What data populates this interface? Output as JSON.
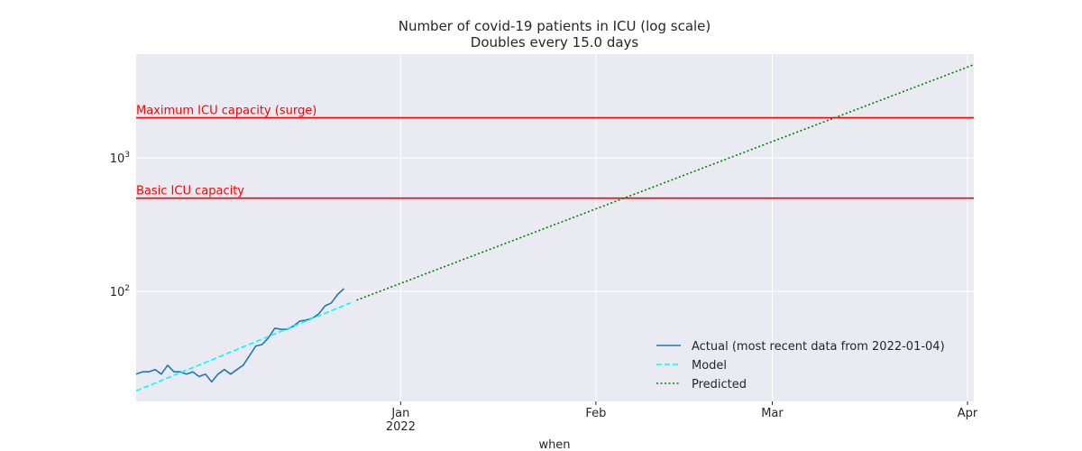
{
  "chart_data": {
    "type": "line",
    "title": "Number of covid-19 patients in ICU (log scale)",
    "subtitle": "Doubles every 15.0 days",
    "xlabel": "when",
    "ylabel": "",
    "yscale": "log",
    "ylim": [
      15,
      6000
    ],
    "xlim": [
      "2021-11-20",
      "2022-04-02"
    ],
    "grid": true,
    "x_ticks": [
      {
        "date": "2022-01-01",
        "label": "Jan",
        "sublabel": "2022"
      },
      {
        "date": "2022-02-01",
        "label": "Feb",
        "sublabel": ""
      },
      {
        "date": "2022-03-01",
        "label": "Mar",
        "sublabel": ""
      },
      {
        "date": "2022-04-01",
        "label": "Apr",
        "sublabel": ""
      }
    ],
    "y_ticks": [
      {
        "value": 100,
        "base": "10",
        "exp": "2"
      },
      {
        "value": 1000,
        "base": "10",
        "exp": "3"
      }
    ],
    "reference_lines": [
      {
        "label": "Maximum ICU capacity (surge)",
        "value": 2000,
        "color": "#ff0000"
      },
      {
        "label": "Basic ICU capacity",
        "value": 500,
        "color": "#ff0000"
      }
    ],
    "series": [
      {
        "name": "Actual (most recent data from 2022-01-04)",
        "style": "solid",
        "color": "#1f77b4",
        "points": [
          [
            "2021-11-20",
            24
          ],
          [
            "2021-11-21",
            25
          ],
          [
            "2021-11-22",
            25
          ],
          [
            "2021-11-23",
            26
          ],
          [
            "2021-11-24",
            24
          ],
          [
            "2021-11-25",
            28
          ],
          [
            "2021-11-26",
            25
          ],
          [
            "2021-11-27",
            25
          ],
          [
            "2021-11-28",
            24
          ],
          [
            "2021-11-29",
            25
          ],
          [
            "2021-11-30",
            23
          ],
          [
            "2021-12-01",
            24
          ],
          [
            "2021-12-02",
            21
          ],
          [
            "2021-12-03",
            24
          ],
          [
            "2021-12-04",
            26
          ],
          [
            "2021-12-05",
            24
          ],
          [
            "2021-12-06",
            26
          ],
          [
            "2021-12-07",
            28
          ],
          [
            "2021-12-08",
            33
          ],
          [
            "2021-12-09",
            39
          ],
          [
            "2021-12-10",
            40
          ],
          [
            "2021-12-11",
            45
          ],
          [
            "2021-12-12",
            53
          ],
          [
            "2021-12-13",
            52
          ],
          [
            "2021-12-14",
            52
          ],
          [
            "2021-12-15",
            55
          ],
          [
            "2021-12-16",
            60
          ],
          [
            "2021-12-17",
            61
          ],
          [
            "2021-12-18",
            63
          ],
          [
            "2021-12-19",
            68
          ],
          [
            "2021-12-20",
            78
          ],
          [
            "2021-12-21",
            82
          ],
          [
            "2021-12-22",
            95
          ],
          [
            "2021-12-23",
            105
          ]
        ]
      },
      {
        "name": "Model",
        "style": "dashed",
        "color": "#00ffff",
        "points": [
          [
            "2021-11-20",
            18
          ],
          [
            "2021-12-24",
            82
          ]
        ]
      },
      {
        "name": "Predicted",
        "style": "dotted",
        "color": "#008000",
        "points": [
          [
            "2021-12-25",
            86
          ],
          [
            "2022-04-02",
            5000
          ]
        ]
      }
    ],
    "legend": "bottom-right"
  },
  "colors": {
    "plot_background": "#eaeaf2",
    "grid": "#ffffff"
  }
}
